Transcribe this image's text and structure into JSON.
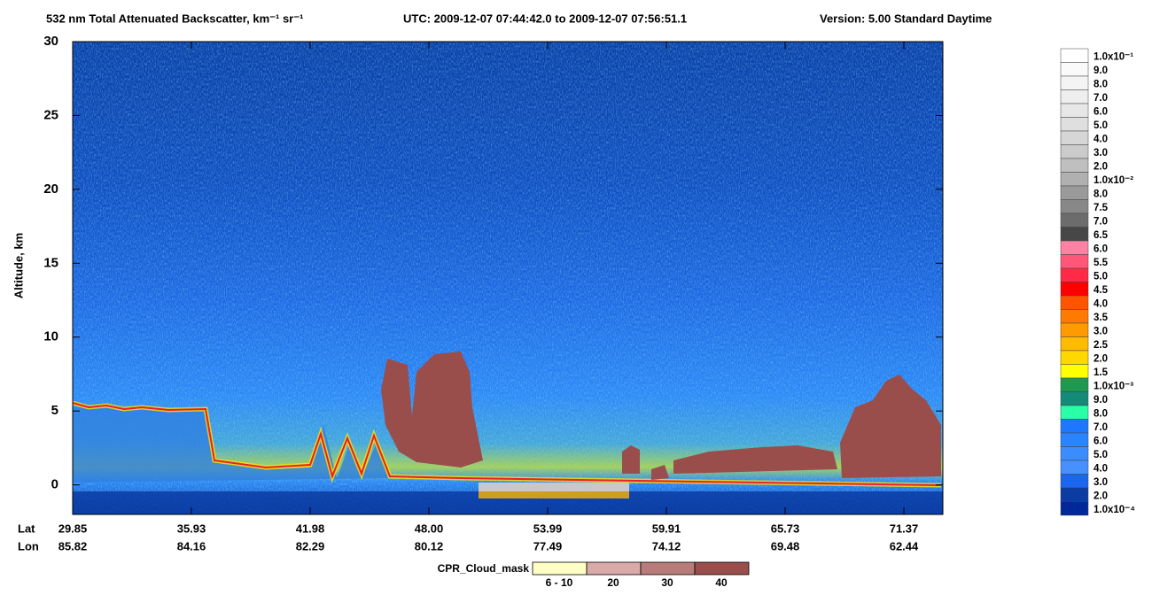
{
  "chart_data": {
    "type": "heatmap",
    "title": "532 nm Total Attenuated Backscatter, km⁻¹ sr⁻¹",
    "time_range": "UTC:  2009-12-07 07:44:42.0  to  2009-12-07 07:56:51.1",
    "version": "Version: 5.00  Standard  Daytime",
    "ylabel": "Altitude, km",
    "ylim": [
      -2,
      30
    ],
    "yticks": [
      0,
      5,
      10,
      15,
      20,
      25,
      30
    ],
    "x_rows": [
      {
        "name": "Lat",
        "labels": [
          "29.85",
          "35.93",
          "41.98",
          "48.00",
          "53.99",
          "59.91",
          "65.73",
          "71.37"
        ]
      },
      {
        "name": "Lon",
        "labels": [
          "85.82",
          "84.16",
          "82.29",
          "80.12",
          "77.49",
          "74.12",
          "69.48",
          "62.44"
        ]
      }
    ],
    "colorbar": {
      "labels": [
        "1.0x10⁻¹",
        "9.0",
        "8.0",
        "7.0",
        "6.0",
        "5.0",
        "4.0",
        "3.0",
        "2.0",
        "1.0x10⁻²",
        "8.0",
        "7.5",
        "7.0",
        "6.5",
        "6.0",
        "5.5",
        "5.0",
        "4.5",
        "4.0",
        "3.5",
        "3.0",
        "2.5",
        "2.0",
        "1.5",
        "1.0x10⁻³",
        "9.0",
        "8.0",
        "7.0",
        "6.0",
        "5.0",
        "4.0",
        "3.0",
        "2.0",
        "1.0x10⁻⁴"
      ],
      "colors": [
        "#ffffff",
        "#fafafa",
        "#f4f4f4",
        "#eeeeee",
        "#e7e7e7",
        "#dfdfdf",
        "#d6d6d6",
        "#cbcbcb",
        "#bfbfbf",
        "#b0b0b0",
        "#9a9a9a",
        "#888888",
        "#6c6c6c",
        "#474747",
        "#ff82a5",
        "#ff5778",
        "#ff2a45",
        "#ff0000",
        "#ff5500",
        "#ff7a00",
        "#ff9a00",
        "#ffbb00",
        "#ffd800",
        "#ffff00",
        "#1e9a50",
        "#148a78",
        "#2affa8",
        "#1e78ff",
        "#2a84ff",
        "#3a8cff",
        "#4690ff",
        "#1a66ee",
        "#0a3ca4",
        "#00289a"
      ]
    },
    "legend": {
      "title": "CPR_Cloud_mask",
      "labels": [
        "6 - 10",
        "20",
        "30",
        "40"
      ],
      "colors": [
        "#ffffc6",
        "#d8aaa8",
        "#b87c7a",
        "#9a4e4c"
      ]
    }
  }
}
